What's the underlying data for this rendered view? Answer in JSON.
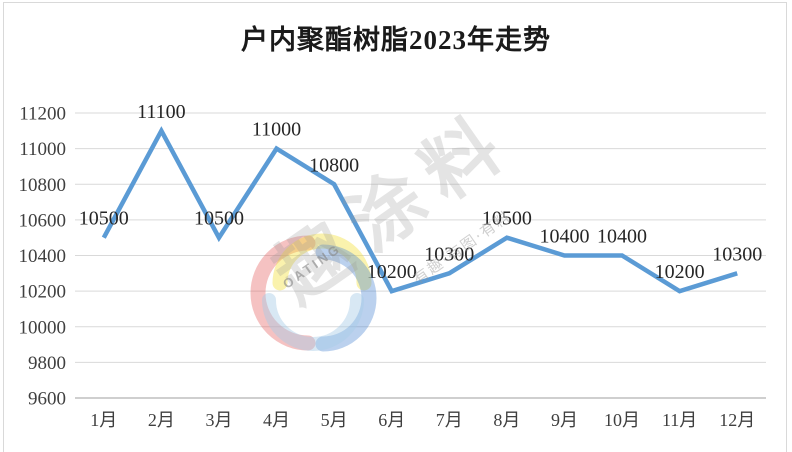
{
  "title": "户内聚酯树脂2023年走势",
  "watermark": {
    "brand_text": "趣涂料",
    "tagline": "有趣·有图·有料",
    "logo_text": "OATING",
    "logo_colors": {
      "red": "#e25555",
      "yellow": "#f3e03b",
      "blue": "#4b86d2",
      "light_blue": "#a8cce6"
    }
  },
  "chart_data": {
    "type": "line",
    "title": "户内聚酯树脂2023年走势",
    "categories": [
      "1月",
      "2月",
      "3月",
      "4月",
      "5月",
      "6月",
      "7月",
      "8月",
      "9月",
      "10月",
      "11月",
      "12月"
    ],
    "values": [
      10500,
      11100,
      10500,
      11000,
      10800,
      10200,
      10300,
      10500,
      10400,
      10400,
      10200,
      10300
    ],
    "y_ticks": [
      9600,
      9800,
      10000,
      10200,
      10400,
      10600,
      10800,
      11000,
      11200
    ],
    "ylim": [
      9600,
      11200
    ],
    "ytick_step": 200,
    "grid": true,
    "legend": false,
    "data_labels": true,
    "line_color": "#5B9BD5",
    "grid_color": "#d9d9d9",
    "axis_line_color": "#bfbfbf",
    "tick_label_color": "#3f3f3f",
    "data_label_color": "#262626"
  }
}
